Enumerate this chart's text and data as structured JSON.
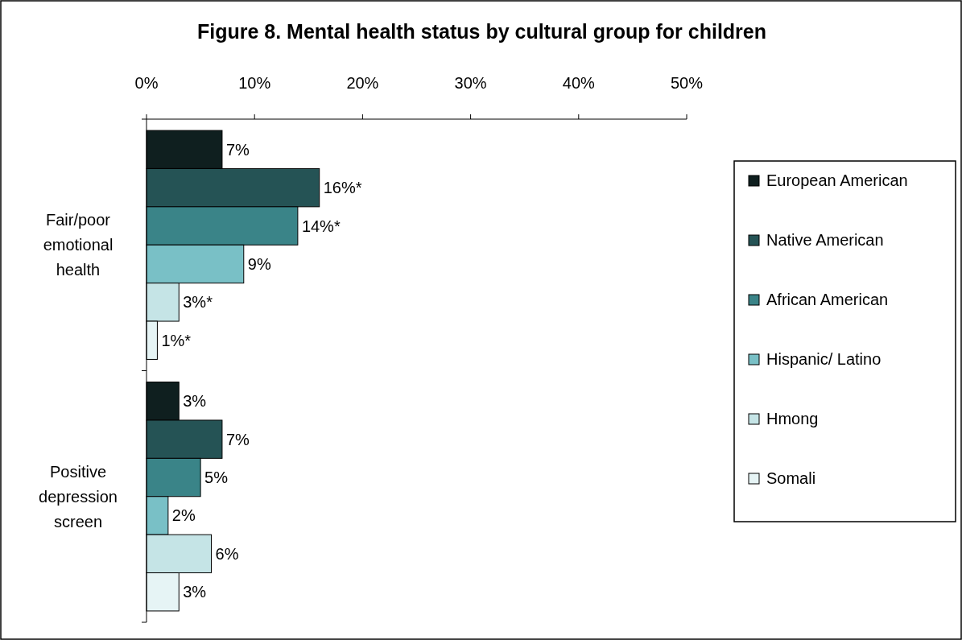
{
  "chart_data": {
    "type": "bar",
    "orientation": "horizontal",
    "title": "Figure 8.  Mental health status by cultural group for children",
    "categories": [
      "Fair/poor emotional health",
      "Positive depression screen"
    ],
    "series": [
      {
        "name": "European American",
        "color": "#0f1f1f",
        "values": [
          7,
          3
        ],
        "value_labels": [
          "7%",
          "3%"
        ]
      },
      {
        "name": "Native American",
        "color": "#255355",
        "values": [
          16,
          7
        ],
        "value_labels": [
          "16%*",
          "7%"
        ]
      },
      {
        "name": "African American",
        "color": "#3a8488",
        "values": [
          14,
          5
        ],
        "value_labels": [
          "14%*",
          "5%"
        ]
      },
      {
        "name": "Hispanic/ Latino",
        "color": "#79c0c6",
        "values": [
          9,
          2
        ],
        "value_labels": [
          "9%",
          "2%"
        ]
      },
      {
        "name": "Hmong",
        "color": "#c5e4e6",
        "values": [
          3,
          6
        ],
        "value_labels": [
          "3%*",
          "6%"
        ]
      },
      {
        "name": "Somali",
        "color": "#e6f4f5",
        "values": [
          1,
          3
        ],
        "value_labels": [
          "1%*",
          "3%"
        ]
      }
    ],
    "xlim": [
      0,
      50
    ],
    "xticks": [
      {
        "value": 0,
        "label": "0%"
      },
      {
        "value": 10,
        "label": "10%"
      },
      {
        "value": 20,
        "label": "20%"
      },
      {
        "value": 30,
        "label": "30%"
      },
      {
        "value": 40,
        "label": "40%"
      },
      {
        "value": 50,
        "label": "50%"
      }
    ],
    "grid": false,
    "legend": "right"
  }
}
